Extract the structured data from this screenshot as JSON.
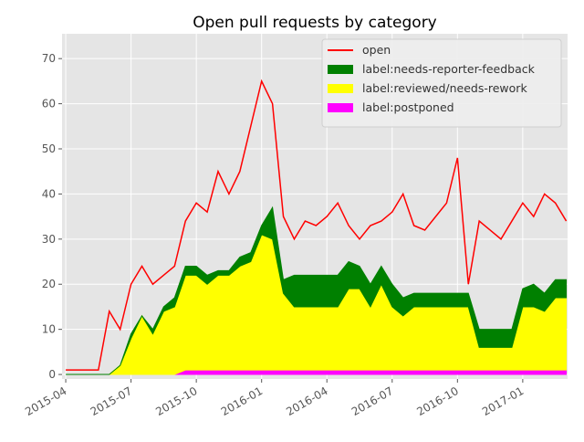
{
  "chart_data": {
    "type": "line",
    "title": "Open pull requests by category",
    "x": [
      0,
      0.5,
      1,
      1.5,
      2,
      2.5,
      3,
      3.5,
      4,
      4.5,
      5,
      5.5,
      6,
      6.5,
      7,
      7.5,
      8,
      8.5,
      9,
      9.5,
      10,
      10.5,
      11,
      11.5,
      12,
      12.5,
      13,
      13.5,
      14,
      14.5,
      15,
      15.5,
      16,
      16.5,
      17,
      17.5,
      18,
      18.5,
      19,
      19.5,
      20,
      20.5,
      21,
      21.5,
      22,
      22.5,
      23
    ],
    "series": [
      {
        "name": "open",
        "color": "#ff0000",
        "kind": "line",
        "values": [
          1,
          1,
          1,
          1,
          14,
          10,
          20,
          24,
          20,
          22,
          24,
          34,
          38,
          36,
          45,
          40,
          45,
          55,
          65,
          60,
          35,
          30,
          34,
          33,
          35,
          38,
          33,
          30,
          33,
          34,
          36,
          40,
          33,
          32,
          35,
          38,
          48,
          20,
          34,
          32,
          30,
          34,
          38,
          35,
          40,
          38,
          34
        ]
      },
      {
        "name": "label:needs-reporter-feedback",
        "color": "#008000",
        "kind": "stack",
        "values": [
          0,
          0,
          0,
          0,
          0,
          0,
          1,
          0,
          1,
          1,
          2,
          2,
          2,
          2,
          1,
          1,
          2,
          2,
          2,
          7,
          3,
          7,
          7,
          7,
          7,
          7,
          6,
          5,
          5,
          4,
          5,
          4,
          3,
          3,
          3,
          3,
          3,
          3,
          4,
          4,
          4,
          4,
          4,
          5,
          4,
          4,
          4
        ]
      },
      {
        "name": "label:reviewed/needs-rework",
        "color": "#ffff00",
        "kind": "stack",
        "values": [
          0,
          0,
          0,
          0,
          0,
          2,
          8,
          13,
          9,
          14,
          15,
          21,
          21,
          19,
          21,
          21,
          23,
          24,
          30,
          29,
          17,
          14,
          14,
          14,
          14,
          14,
          18,
          18,
          14,
          19,
          14,
          12,
          14,
          14,
          14,
          14,
          14,
          14,
          5,
          5,
          5,
          5,
          14,
          14,
          13,
          16,
          16
        ]
      },
      {
        "name": "label:postponed",
        "color": "#ff00ff",
        "kind": "stack",
        "values": [
          0,
          0,
          0,
          0,
          0,
          0,
          0,
          0,
          0,
          0,
          0,
          1,
          1,
          1,
          1,
          1,
          1,
          1,
          1,
          1,
          1,
          1,
          1,
          1,
          1,
          1,
          1,
          1,
          1,
          1,
          1,
          1,
          1,
          1,
          1,
          1,
          1,
          1,
          1,
          1,
          1,
          1,
          1,
          1,
          1,
          1,
          1
        ]
      }
    ],
    "xlim": [
      -0.17,
      23.06
    ],
    "xticks": [
      {
        "value": 0,
        "label": "2015-04"
      },
      {
        "value": 3,
        "label": "2015-07"
      },
      {
        "value": 6,
        "label": "2015-10"
      },
      {
        "value": 9,
        "label": "2016-01"
      },
      {
        "value": 12,
        "label": "2016-04"
      },
      {
        "value": 15,
        "label": "2016-07"
      },
      {
        "value": 18,
        "label": "2016-10"
      },
      {
        "value": 21,
        "label": "2017-01"
      }
    ],
    "ylim": [
      -1,
      75.5
    ],
    "yticks": [
      0,
      10,
      20,
      30,
      40,
      50,
      60,
      70
    ],
    "grid": true,
    "legend": "upper right"
  }
}
